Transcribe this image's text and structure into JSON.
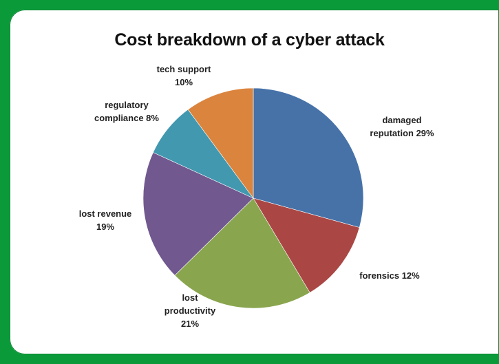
{
  "frame_color": "#0a9a3a",
  "chart_data": {
    "type": "pie",
    "title": "Cost breakdown of a cyber attack",
    "slices": [
      {
        "name": "damaged reputation",
        "value": 29,
        "color": "#4672a8",
        "label_lines": [
          "damaged",
          "reputation 29%"
        ]
      },
      {
        "name": "forensics",
        "value": 12,
        "color": "#aa4744",
        "label_lines": [
          "forensics 12%"
        ]
      },
      {
        "name": "lost productivity",
        "value": 21,
        "color": "#89a54e",
        "label_lines": [
          "lost",
          "productivity",
          "21%"
        ]
      },
      {
        "name": "lost revenue",
        "value": 19,
        "color": "#71588f",
        "label_lines": [
          "lost revenue",
          "19%"
        ]
      },
      {
        "name": "regulatory compliance",
        "value": 8,
        "color": "#4198af",
        "label_lines": [
          "regulatory",
          "compliance 8%"
        ]
      },
      {
        "name": "tech support",
        "value": 10,
        "color": "#db843d",
        "label_lines": [
          "tech support",
          "10%"
        ]
      }
    ],
    "legend": "none",
    "grid": false
  }
}
